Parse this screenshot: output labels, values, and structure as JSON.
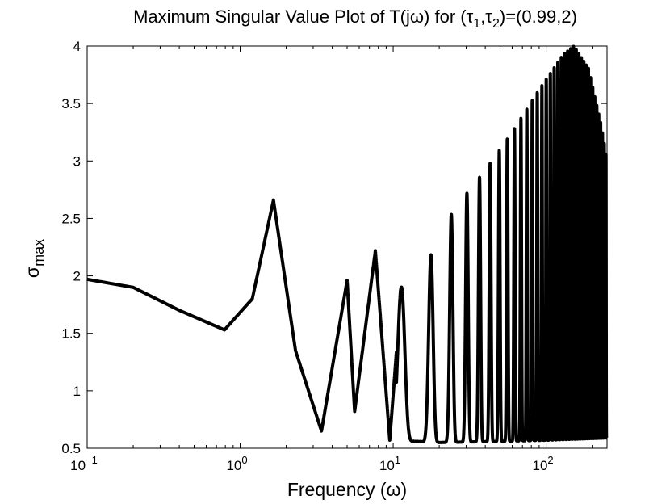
{
  "chart_data": {
    "type": "line",
    "title_parts": {
      "main": "Maximum Singular Value Plot of T(jω) for (τ",
      "sub1": "1",
      "comma": ",τ",
      "sub2": "2",
      "tail": ")=(0.99,2)"
    },
    "xlabel": "Frequency (ω)",
    "ylabel_base": "σ",
    "ylabel_sub": "max",
    "x_scale": "log",
    "xlim": [
      0.1,
      250
    ],
    "ylim": [
      0.5,
      4
    ],
    "x_ticks": [
      {
        "base": "10",
        "exp": "−1",
        "value": 0.1
      },
      {
        "base": "10",
        "exp": "0",
        "value": 1
      },
      {
        "base": "10",
        "exp": "1",
        "value": 10
      },
      {
        "base": "10",
        "exp": "2",
        "value": 100
      }
    ],
    "y_ticks": [
      "0.5",
      "1",
      "1.5",
      "2",
      "2.5",
      "3",
      "3.5",
      "4"
    ],
    "grid": false,
    "series": [
      {
        "color": "#000000",
        "description_points": [
          [
            0.1,
            1.97
          ],
          [
            0.2,
            1.9
          ],
          [
            0.4,
            1.7
          ],
          [
            0.79,
            1.53
          ],
          [
            1.2,
            1.8
          ],
          [
            1.65,
            2.66
          ],
          [
            2.3,
            1.35
          ],
          [
            3.4,
            0.65
          ],
          [
            5.0,
            1.96
          ],
          [
            5.6,
            0.82
          ],
          [
            7.65,
            2.22
          ],
          [
            9.5,
            0.57
          ],
          [
            11.3,
            1.9
          ],
          [
            14.3,
            2.24
          ],
          [
            17.5,
            2.17
          ],
          [
            20.5,
            2.4
          ],
          [
            26.5,
            2.62
          ],
          [
            36,
            2.9
          ],
          [
            50,
            3.2
          ],
          [
            80,
            3.6
          ],
          [
            152,
            4.0
          ],
          [
            250,
            3.0
          ]
        ],
        "envelope_peaks": [
          [
            11.3,
            1.9
          ],
          [
            14.3,
            2.24
          ],
          [
            17.5,
            2.17
          ],
          [
            20.5,
            2.4
          ],
          [
            26.5,
            2.62
          ],
          [
            40,
            2.92
          ],
          [
            60,
            3.25
          ],
          [
            90,
            3.62
          ],
          [
            130,
            3.93
          ],
          [
            152,
            4.0
          ],
          [
            190,
            3.8
          ],
          [
            230,
            3.3
          ],
          [
            250,
            3.0
          ]
        ],
        "envelope_troughs": [
          [
            9.5,
            0.57
          ],
          [
            20,
            0.55
          ],
          [
            50,
            0.56
          ],
          [
            100,
            0.57
          ],
          [
            250,
            0.59
          ]
        ]
      }
    ]
  }
}
